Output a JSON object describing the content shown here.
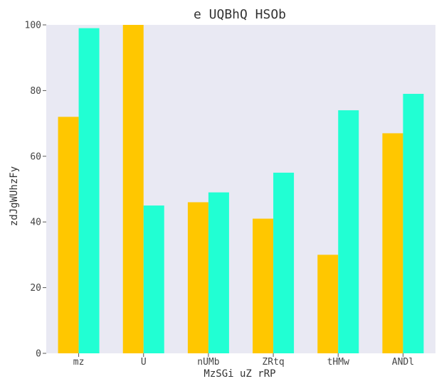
{
  "chart_data": {
    "type": "bar",
    "title": "e UQBhQ HSOb",
    "xlabel": "MzSGi uZ rRP",
    "ylabel": "zdJgWUhzFy",
    "categories": [
      "mz",
      "U",
      "nUMb",
      "ZRtq",
      "tHMw",
      "ANDl"
    ],
    "series": [
      {
        "values": [
          72,
          100,
          46,
          41,
          30,
          67
        ],
        "color": "#ffc700"
      },
      {
        "values": [
          99,
          45,
          49,
          55,
          74,
          79
        ],
        "color": "#21ffd3"
      }
    ],
    "ylim": [
      0,
      100
    ],
    "yticks": [
      0,
      20,
      40,
      60,
      80,
      100
    ],
    "grid": false,
    "legend": "none",
    "background_color": "#e9e9f3"
  }
}
